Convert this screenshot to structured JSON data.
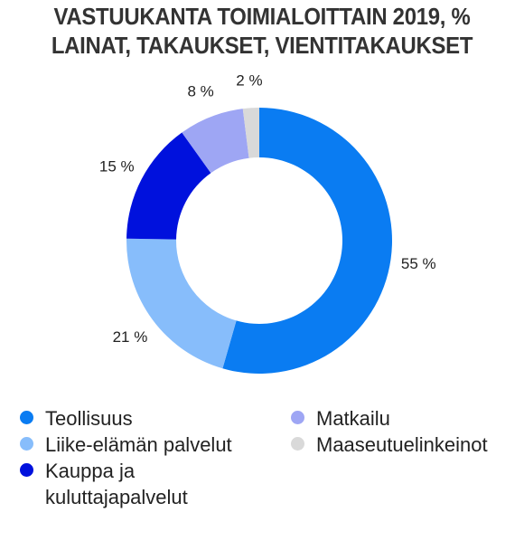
{
  "title": {
    "line1": "VASTUUKANTA TOIMIALOITTAIN 2019, %",
    "line2": "LAINAT, TAKAUKSET, VIENTITAKAUKSET"
  },
  "chart_data": {
    "type": "pie",
    "variant": "donut",
    "title": "VASTUUKANTA TOIMIALOITTAIN 2019, % LAINAT, TAKAUKSET, VIENTITAKAUKSET",
    "categories": [
      "Teollisuus",
      "Liike-elämän palvelut",
      "Kauppa ja kuluttajapalvelut",
      "Matkailu",
      "Maaseutuelinkeinot"
    ],
    "values": [
      55,
      21,
      15,
      8,
      2
    ],
    "value_labels": [
      "55 %",
      "21 %",
      "15 %",
      "8 %",
      "2 %"
    ],
    "colors": [
      "#0a7cf2",
      "#87bdfb",
      "#0011dd",
      "#9ea6f4",
      "#d9d9d9"
    ],
    "legend_placement": "bottom"
  },
  "legend": {
    "left": [
      {
        "label": "Teollisuus",
        "color": "#0a7cf2"
      },
      {
        "label": "Liike-elämän palvelut",
        "color": "#87bdfb"
      },
      {
        "label": "Kauppa ja",
        "label2": "kuluttajapalvelut",
        "color": "#0011dd"
      }
    ],
    "right": [
      {
        "label": "Matkailu",
        "color": "#9ea6f4"
      },
      {
        "label": "Maaseutuelinkeinot",
        "color": "#d9d9d9"
      }
    ]
  }
}
